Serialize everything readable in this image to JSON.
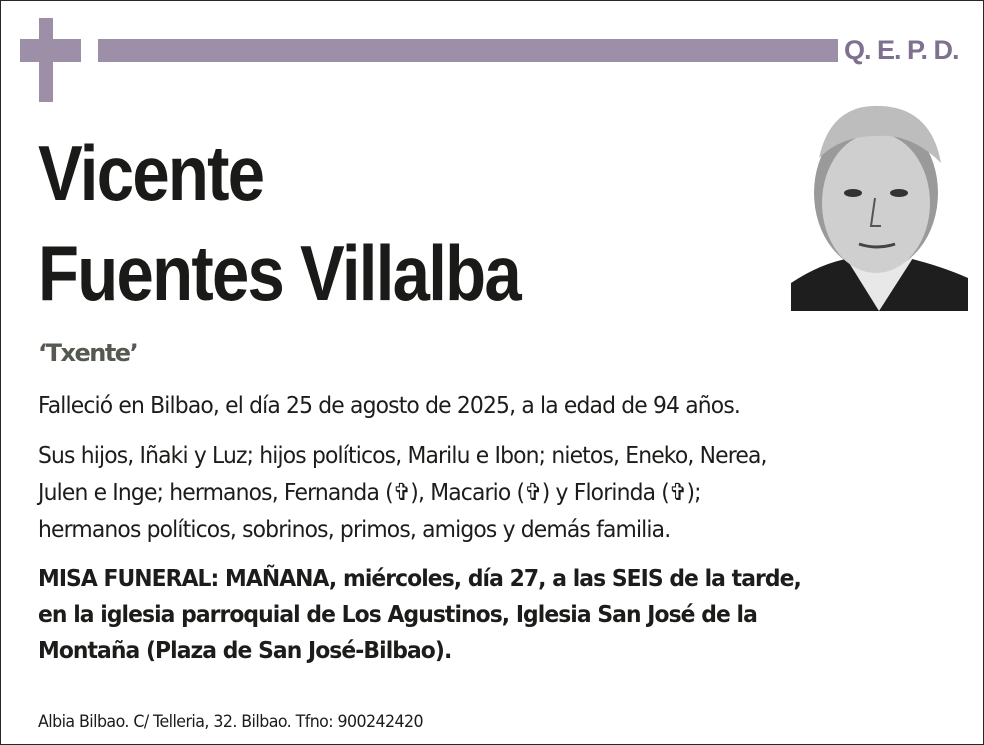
{
  "header": {
    "qepd": "Q. E. P. D.",
    "accent_color": "#9d8fa7"
  },
  "deceased": {
    "first_name": "Vicente",
    "surnames": "Fuentes Villalba",
    "nickname": "‘Txente’"
  },
  "photo": {
    "icon": "portrait-photo"
  },
  "death_notice": "Falleció en Bilbao, el día 25 de agosto de 2025, a la edad de 94 años.",
  "family_lines": [
    "Sus hijos, Iñaki y Luz; hijos políticos, Marilu e Ibon; nietos, Eneko, Nerea,",
    "Julen e Inge; hermanos, Fernanda (✞), Macario (✞) y Florinda (✞);",
    "hermanos políticos, sobrinos, primos, amigos y demás familia."
  ],
  "funeral_lines": [
    "MISA FUNERAL: MAÑANA, miércoles, día 27, a las SEIS de la tarde,",
    "en la iglesia parroquial de Los Agustinos, Iglesia San José de la",
    "Montaña (Plaza de San José-Bilbao)."
  ],
  "footer": "Albia Bilbao. C/ Telleria, 32. Bilbao. Tfno: 900242420"
}
